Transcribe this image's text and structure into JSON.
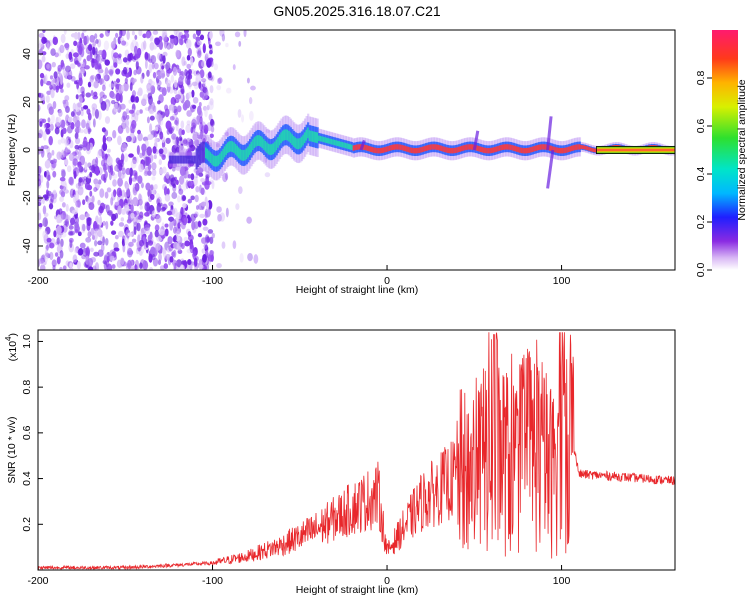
{
  "title": "GN05.2025.316.18.07.C21",
  "chart_data": [
    {
      "type": "heatmap",
      "name": "spectrogram",
      "xlabel": "Height of straight line (km)",
      "ylabel": "Frequency (Hz)",
      "xlim": [
        -200,
        165
      ],
      "ylim": [
        -50,
        50
      ],
      "xticks": [
        -200,
        -100,
        0,
        100
      ],
      "yticks": [
        -40,
        -20,
        0,
        20,
        40
      ],
      "colorbar": {
        "label": "Normalized spectral amplitude",
        "range": [
          0.0,
          1.0
        ],
        "ticks": [
          "0.0",
          "0.2",
          "0.4",
          "0.6",
          "0.8"
        ]
      },
      "features": [
        {
          "label": "noise region",
          "x_range": [
            -200,
            -100
          ],
          "freq_range": [
            -50,
            50
          ]
        },
        {
          "label": "main signal trace",
          "x_range": [
            -120,
            165
          ],
          "center_freq_hz": 0
        }
      ]
    },
    {
      "type": "line",
      "name": "snr",
      "xlabel": "Height of straight line (km)",
      "ylabel": "SNR (10 * v/v)",
      "scale_label": "(x10",
      "scale_exp": "4",
      "scale_close": ")",
      "xlim": [
        -200,
        165
      ],
      "ylim": [
        0,
        1.05
      ],
      "xticks": [
        -200,
        -100,
        0,
        100
      ],
      "yticks": [
        "0.2",
        "0.4",
        "0.6",
        "0.8",
        "1.0"
      ],
      "ytick_values": [
        0.2,
        0.4,
        0.6,
        0.8,
        1.0
      ],
      "color": "#e8272b",
      "series": [
        {
          "name": "SNR",
          "x": [
            -200,
            -150,
            -100,
            -80,
            -60,
            -40,
            -20,
            -5,
            0,
            20,
            40,
            55,
            60,
            70,
            85,
            95,
            100,
            105,
            110,
            130,
            165
          ],
          "y": [
            0.01,
            0.01,
            0.03,
            0.06,
            0.11,
            0.18,
            0.27,
            0.33,
            0.08,
            0.3,
            0.41,
            0.47,
            0.6,
            0.45,
            0.55,
            0.42,
            0.7,
            0.62,
            0.42,
            0.41,
            0.39
          ]
        }
      ]
    }
  ]
}
